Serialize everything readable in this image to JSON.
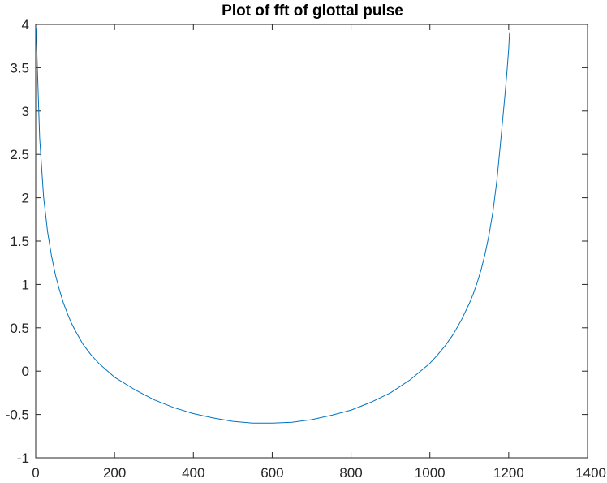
{
  "colors": {
    "background": "#ffffff",
    "axes": "#262626",
    "series": "#0072bd"
  },
  "chart_data": {
    "type": "line",
    "title": "Plot of fft of glottal pulse",
    "xlabel": "",
    "ylabel": "",
    "xlim": [
      0,
      1400
    ],
    "ylim": [
      -1,
      4
    ],
    "xticks": [
      0,
      200,
      400,
      600,
      800,
      1000,
      1200,
      1400
    ],
    "xtick_labels": [
      "0",
      "200",
      "400",
      "600",
      "800",
      "1000",
      "1200",
      "1400"
    ],
    "yticks": [
      -1,
      -0.5,
      0,
      0.5,
      1,
      1.5,
      2,
      2.5,
      3,
      3.5,
      4
    ],
    "ytick_labels": [
      "-1",
      "-0.5",
      "0",
      "0.5",
      "1",
      "1.5",
      "2",
      "2.5",
      "3",
      "3.5",
      "4"
    ],
    "grid": false,
    "box": true,
    "series": [
      {
        "color": "#0072bd",
        "x": [
          1,
          5,
          10,
          20,
          30,
          40,
          50,
          60,
          70,
          80,
          90,
          100,
          120,
          140,
          160,
          180,
          200,
          250,
          300,
          350,
          400,
          450,
          500,
          550,
          601,
          650,
          700,
          750,
          800,
          850,
          900,
          950,
          1000,
          1020,
          1040,
          1060,
          1080,
          1100,
          1110,
          1120,
          1130,
          1140,
          1150,
          1160,
          1170,
          1180,
          1190,
          1195,
          1200,
          1202
        ],
        "y": [
          3.95,
          3.39,
          2.69,
          2.01,
          1.61,
          1.33,
          1.11,
          0.94,
          0.79,
          0.67,
          0.56,
          0.47,
          0.31,
          0.19,
          0.09,
          0.01,
          -0.07,
          -0.21,
          -0.33,
          -0.42,
          -0.49,
          -0.54,
          -0.58,
          -0.6,
          -0.6,
          -0.59,
          -0.56,
          -0.51,
          -0.45,
          -0.36,
          -0.25,
          -0.1,
          0.09,
          0.19,
          0.3,
          0.43,
          0.59,
          0.78,
          0.89,
          1.02,
          1.17,
          1.35,
          1.57,
          1.84,
          2.2,
          2.67,
          3.16,
          3.42,
          3.72,
          3.9
        ]
      }
    ]
  }
}
